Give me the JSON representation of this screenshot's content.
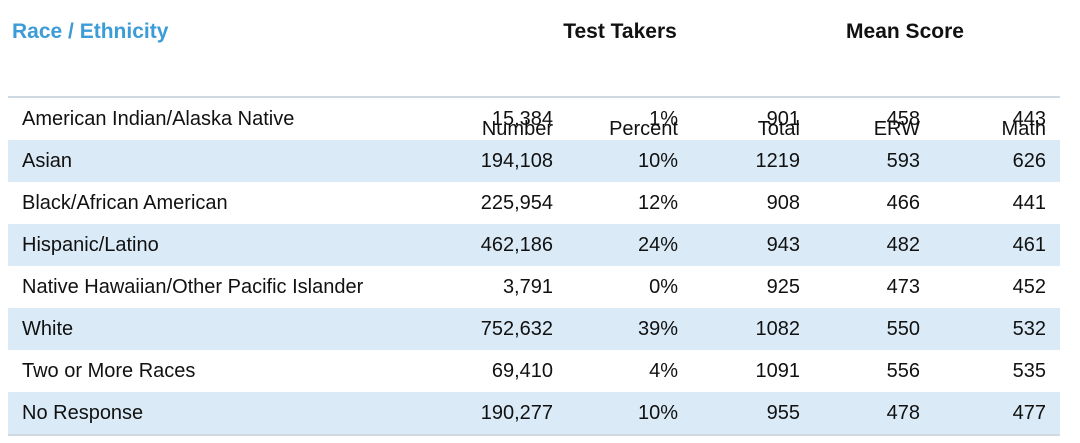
{
  "table": {
    "title": "Race / Ethnicity",
    "group_headers": {
      "test_takers": "Test Takers",
      "mean_score": "Mean Score"
    },
    "columns": {
      "number": "Number",
      "percent": "Percent",
      "total": "Total",
      "erw": "ERW",
      "math": "Math"
    },
    "rows": [
      {
        "label": "American Indian/Alaska Native",
        "number": "15,384",
        "percent": "1%",
        "total": "901",
        "erw": "458",
        "math": "443"
      },
      {
        "label": "Asian",
        "number": "194,108",
        "percent": "10%",
        "total": "1219",
        "erw": "593",
        "math": "626"
      },
      {
        "label": "Black/African American",
        "number": "225,954",
        "percent": "12%",
        "total": "908",
        "erw": "466",
        "math": "441"
      },
      {
        "label": "Hispanic/Latino",
        "number": "462,186",
        "percent": "24%",
        "total": "943",
        "erw": "482",
        "math": "461"
      },
      {
        "label": "Native Hawaiian/Other Pacific Islander",
        "number": "3,791",
        "percent": "0%",
        "total": "925",
        "erw": "473",
        "math": "452"
      },
      {
        "label": "White",
        "number": "752,632",
        "percent": "39%",
        "total": "1082",
        "erw": "550",
        "math": "532"
      },
      {
        "label": "Two or More Races",
        "number": "69,410",
        "percent": "4%",
        "total": "1091",
        "erw": "556",
        "math": "535"
      },
      {
        "label": "No Response",
        "number": "190,277",
        "percent": "10%",
        "total": "955",
        "erw": "478",
        "math": "477"
      }
    ]
  },
  "colors": {
    "title": "#3c9cd8",
    "alt_row": "#daebf7",
    "rule": "#cfd9e2"
  }
}
